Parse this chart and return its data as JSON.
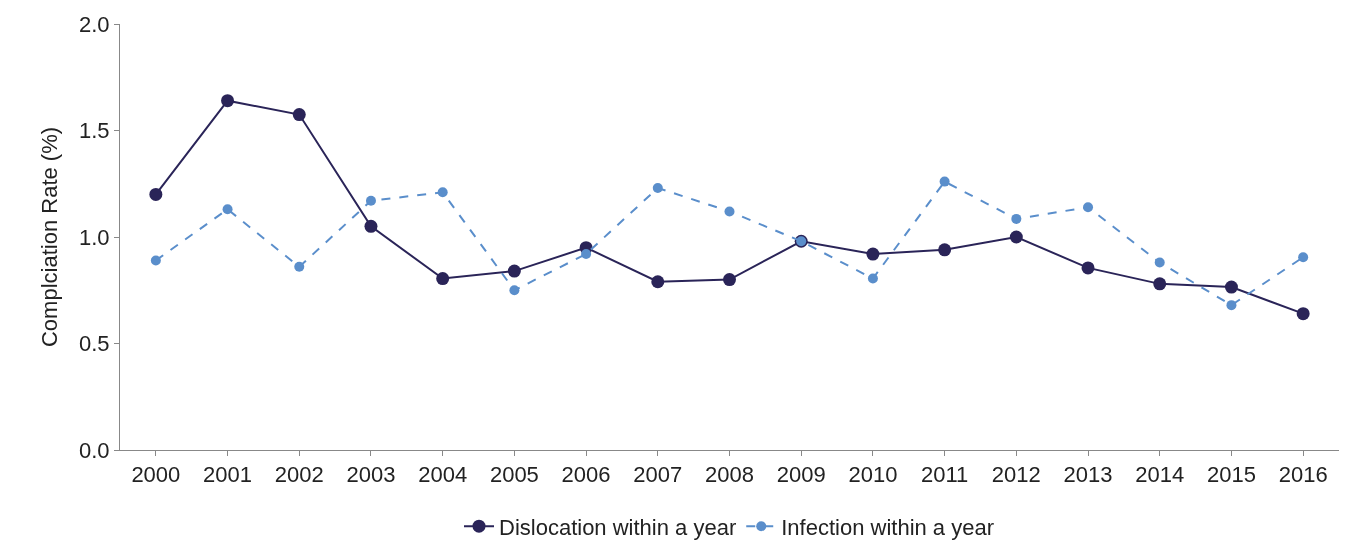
{
  "chart_data": {
    "type": "line",
    "ylabel": "Complciation Rate (%)",
    "categories": [
      "2000",
      "2001",
      "2002",
      "2003",
      "2004",
      "2005",
      "2006",
      "2007",
      "2008",
      "2009",
      "2010",
      "2011",
      "2012",
      "2013",
      "2014",
      "2015",
      "2016"
    ],
    "series": [
      {
        "name": "Dislocation within a year",
        "color": "#2a2458",
        "line_style": "solid",
        "values": [
          1.2,
          1.64,
          1.575,
          1.05,
          0.805,
          0.84,
          0.95,
          0.79,
          0.8,
          0.98,
          0.92,
          0.94,
          1.0,
          0.855,
          0.78,
          0.765,
          0.64
        ]
      },
      {
        "name": "Infection within a year",
        "color": "#5a8ecb",
        "line_style": "dashed",
        "values": [
          0.89,
          1.13,
          0.86,
          1.17,
          1.21,
          0.75,
          0.92,
          1.23,
          1.12,
          0.98,
          0.805,
          1.26,
          1.085,
          1.14,
          0.88,
          0.68,
          0.905
        ]
      }
    ],
    "ylim": [
      0,
      2.0
    ],
    "yticks": [
      {
        "value": 0,
        "label": "0.0"
      },
      {
        "value": 0.5,
        "label": "0.5"
      },
      {
        "value": 1.0,
        "label": "1.0"
      },
      {
        "value": 1.5,
        "label": "1.5"
      },
      {
        "value": 2.0,
        "label": "2.0"
      }
    ],
    "legend": "bottom",
    "marker": "circle"
  }
}
